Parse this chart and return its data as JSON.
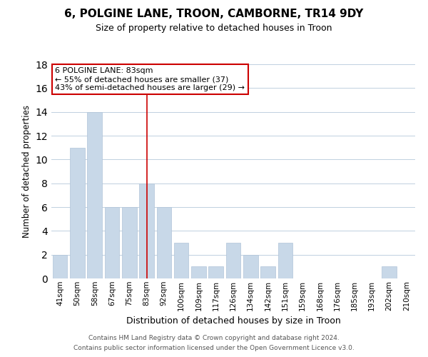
{
  "title": "6, POLGINE LANE, TROON, CAMBORNE, TR14 9DY",
  "subtitle": "Size of property relative to detached houses in Troon",
  "xlabel": "Distribution of detached houses by size in Troon",
  "ylabel": "Number of detached properties",
  "bar_color": "#c8d8e8",
  "bar_edgecolor": "#b0c4d8",
  "categories": [
    "41sqm",
    "50sqm",
    "58sqm",
    "67sqm",
    "75sqm",
    "83sqm",
    "92sqm",
    "100sqm",
    "109sqm",
    "117sqm",
    "126sqm",
    "134sqm",
    "142sqm",
    "151sqm",
    "159sqm",
    "168sqm",
    "176sqm",
    "185sqm",
    "193sqm",
    "202sqm",
    "210sqm"
  ],
  "values": [
    2,
    11,
    14,
    6,
    6,
    8,
    6,
    3,
    1,
    1,
    3,
    2,
    1,
    3,
    0,
    0,
    0,
    0,
    0,
    1,
    0
  ],
  "ylim": [
    0,
    18
  ],
  "yticks": [
    0,
    2,
    4,
    6,
    8,
    10,
    12,
    14,
    16,
    18
  ],
  "annotation_title": "6 POLGINE LANE: 83sqm",
  "annotation_line1": "← 55% of detached houses are smaller (37)",
  "annotation_line2": "43% of semi-detached houses are larger (29) →",
  "vline_x_index": 5,
  "vline_color": "#cc0000",
  "annotation_box_color": "#ffffff",
  "annotation_box_edgecolor": "#cc0000",
  "footer1": "Contains HM Land Registry data © Crown copyright and database right 2024.",
  "footer2": "Contains public sector information licensed under the Open Government Licence v3.0.",
  "background_color": "#ffffff",
  "grid_color": "#c0d0e0"
}
